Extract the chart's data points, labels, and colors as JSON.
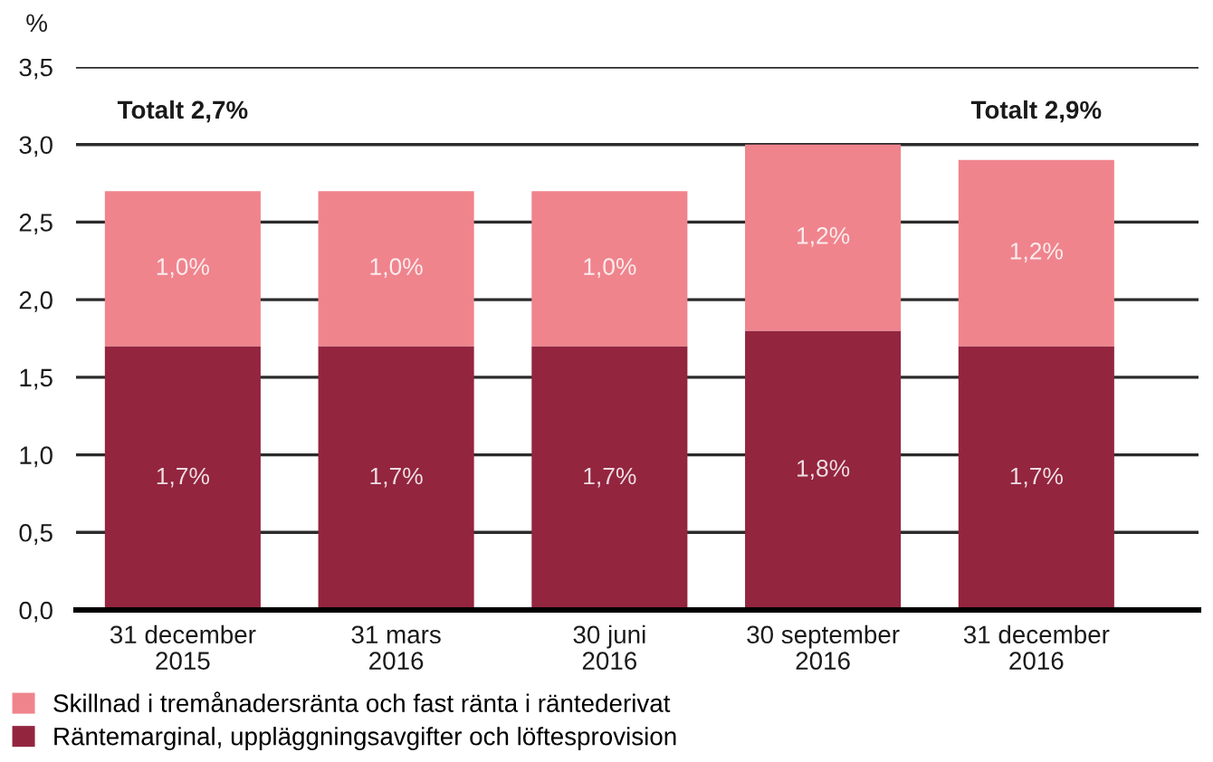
{
  "chart_data": {
    "type": "bar",
    "stacked": true,
    "ylabel": "%",
    "categories": [
      "31 december\n2015",
      "31 mars\n2016",
      "30 juni\n2016",
      "30 september\n2016",
      "31 december\n2016"
    ],
    "series": [
      {
        "name": "Räntemarginal, uppläggningsavgifter och löftesprovision",
        "color": "#93253f",
        "values": [
          1.7,
          1.7,
          1.7,
          1.8,
          1.7
        ],
        "value_labels": [
          "1,7%",
          "1,7%",
          "1,7%",
          "1,8%",
          "1,7%"
        ]
      },
      {
        "name": "Skillnad i tremånadersränta och fast ränta i räntederivat",
        "color": "#ef848d",
        "values": [
          1.0,
          1.0,
          1.0,
          1.2,
          1.2
        ],
        "value_labels": [
          "1,0%",
          "1,0%",
          "1,0%",
          "1,2%",
          "1,2%"
        ]
      }
    ],
    "totals": [
      "Totalt 2,7%",
      null,
      null,
      null,
      "Totalt 2,9%"
    ],
    "ylim": [
      0,
      3.5
    ],
    "yticks": [
      {
        "value": 0,
        "label": "0,0"
      },
      {
        "value": 0.5,
        "label": "0,5"
      },
      {
        "value": 1.0,
        "label": "1,0"
      },
      {
        "value": 1.5,
        "label": "1,5"
      },
      {
        "value": 2.0,
        "label": "2,0"
      },
      {
        "value": 2.5,
        "label": "2,5"
      },
      {
        "value": 3.0,
        "label": "3,0"
      },
      {
        "value": 3.5,
        "label": "3,5"
      }
    ],
    "grid": "y",
    "legend": "bottom"
  }
}
